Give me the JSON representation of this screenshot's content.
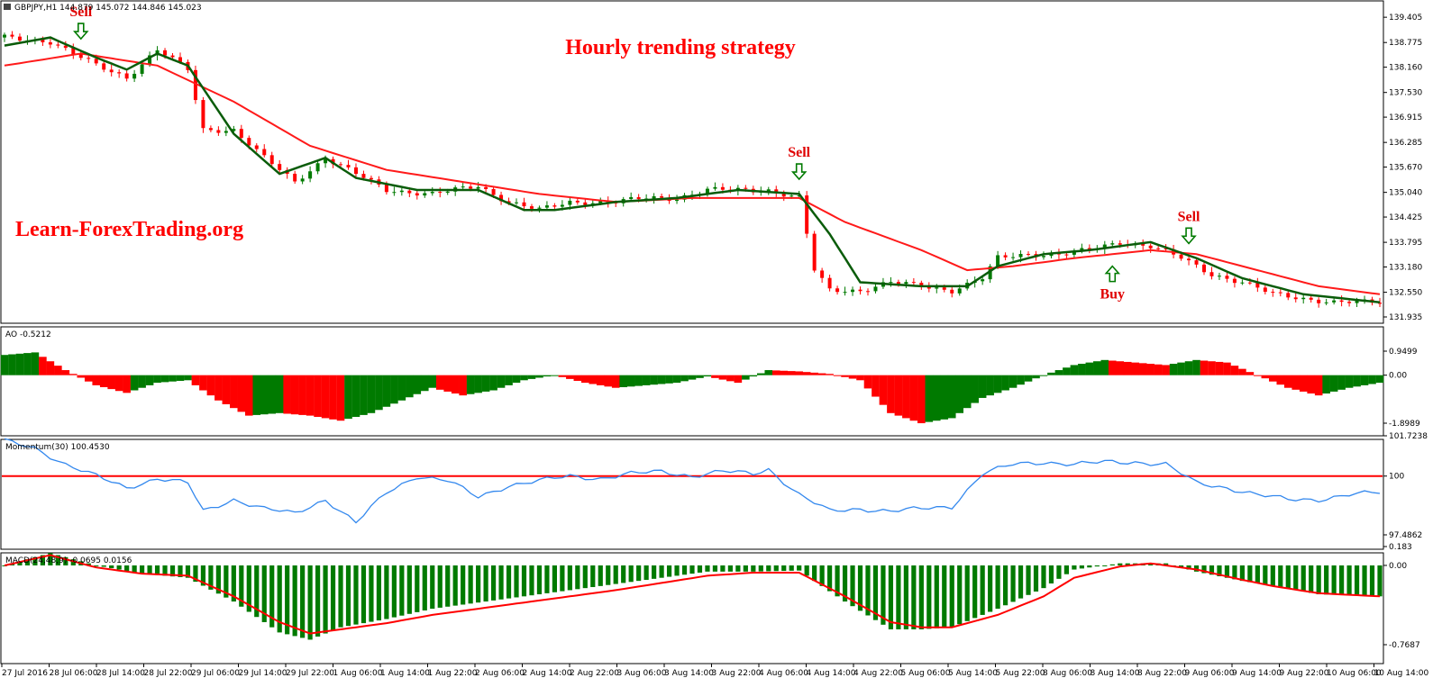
{
  "colors": {
    "bull": "#007a00",
    "bear": "#ff0000",
    "slow_ma": "#ff1a1a",
    "fast_ma": "#0a5c0a",
    "momentum_line": "#3388ee",
    "ref_line": "#ff0000",
    "macd_hist": "#007a00",
    "macd_signal": "#ff0000",
    "text_red": "#ff0000"
  },
  "header": {
    "symbol_info": "GBPJPY,H1  144.879 145.072 144.846 145.023",
    "title": "Hourly trending strategy",
    "watermark": "Learn-ForexTrading.org"
  },
  "signals": [
    {
      "label": "Sell",
      "direction": "down",
      "time_index": 10
    },
    {
      "label": "Sell",
      "direction": "down",
      "time_index": 104
    },
    {
      "label": "Buy",
      "direction": "up",
      "time_index": 145
    },
    {
      "label": "Sell",
      "direction": "down",
      "time_index": 155
    }
  ],
  "x_axis": {
    "labels": [
      "27 Jul 2016",
      "28 Jul 06:00",
      "28 Jul 14:00",
      "28 Jul 22:00",
      "29 Jul 06:00",
      "29 Jul 14:00",
      "29 Jul 22:00",
      "1 Aug 06:00",
      "1 Aug 14:00",
      "1 Aug 22:00",
      "2 Aug 06:00",
      "2 Aug 14:00",
      "2 Aug 22:00",
      "3 Aug 06:00",
      "3 Aug 14:00",
      "3 Aug 22:00",
      "4 Aug 06:00",
      "4 Aug 14:00",
      "4 Aug 22:00",
      "5 Aug 06:00",
      "5 Aug 14:00",
      "5 Aug 22:00",
      "8 Aug 06:00",
      "8 Aug 14:00",
      "8 Aug 22:00",
      "9 Aug 06:00",
      "9 Aug 14:00",
      "9 Aug 22:00",
      "10 Aug 06:00",
      "10 Aug 14:00"
    ]
  },
  "chart_data": [
    {
      "type": "candlestick",
      "name": "price",
      "ylim": [
        131.935,
        139.7
      ],
      "y_ticks": [
        "139.405",
        "138.775",
        "138.160",
        "137.530",
        "136.915",
        "136.285",
        "135.670",
        "135.040",
        "134.425",
        "133.795",
        "133.180",
        "132.550",
        "131.935"
      ],
      "close_points": [
        [
          0,
          138.9
        ],
        [
          6,
          138.8
        ],
        [
          12,
          138.2
        ],
        [
          16,
          137.9
        ],
        [
          20,
          138.6
        ],
        [
          24,
          138.1
        ],
        [
          26,
          136.6
        ],
        [
          30,
          136.6
        ],
        [
          34,
          135.9
        ],
        [
          38,
          135.3
        ],
        [
          42,
          135.9
        ],
        [
          46,
          135.5
        ],
        [
          50,
          135.1
        ],
        [
          56,
          135.0
        ],
        [
          62,
          135.2
        ],
        [
          66,
          134.8
        ],
        [
          70,
          134.6
        ],
        [
          74,
          134.8
        ],
        [
          80,
          134.8
        ],
        [
          84,
          134.9
        ],
        [
          88,
          134.9
        ],
        [
          92,
          135.1
        ],
        [
          96,
          135.1
        ],
        [
          100,
          135.1
        ],
        [
          104,
          134.9
        ],
        [
          106,
          133.1
        ],
        [
          108,
          132.6
        ],
        [
          112,
          132.6
        ],
        [
          116,
          132.8
        ],
        [
          120,
          132.7
        ],
        [
          124,
          132.6
        ],
        [
          128,
          132.9
        ],
        [
          130,
          133.4
        ],
        [
          134,
          133.5
        ],
        [
          138,
          133.5
        ],
        [
          142,
          133.6
        ],
        [
          146,
          133.8
        ],
        [
          150,
          133.7
        ],
        [
          154,
          133.4
        ],
        [
          158,
          133.0
        ],
        [
          162,
          132.8
        ],
        [
          166,
          132.5
        ],
        [
          170,
          132.4
        ],
        [
          174,
          132.3
        ],
        [
          178,
          132.3
        ],
        [
          180,
          132.3
        ]
      ],
      "slow_ma_points": [
        [
          0,
          138.2
        ],
        [
          10,
          138.5
        ],
        [
          20,
          138.2
        ],
        [
          30,
          137.3
        ],
        [
          40,
          136.2
        ],
        [
          50,
          135.6
        ],
        [
          60,
          135.3
        ],
        [
          70,
          135.0
        ],
        [
          80,
          134.8
        ],
        [
          90,
          134.9
        ],
        [
          100,
          134.9
        ],
        [
          104,
          134.9
        ],
        [
          110,
          134.3
        ],
        [
          120,
          133.6
        ],
        [
          126,
          133.1
        ],
        [
          132,
          133.2
        ],
        [
          140,
          133.4
        ],
        [
          150,
          133.6
        ],
        [
          156,
          133.5
        ],
        [
          164,
          133.1
        ],
        [
          172,
          132.7
        ],
        [
          180,
          132.5
        ]
      ],
      "fast_ma_points": [
        [
          0,
          138.7
        ],
        [
          6,
          138.9
        ],
        [
          12,
          138.4
        ],
        [
          16,
          138.1
        ],
        [
          20,
          138.5
        ],
        [
          24,
          138.2
        ],
        [
          30,
          136.5
        ],
        [
          36,
          135.5
        ],
        [
          42,
          135.9
        ],
        [
          46,
          135.4
        ],
        [
          54,
          135.1
        ],
        [
          62,
          135.1
        ],
        [
          68,
          134.6
        ],
        [
          72,
          134.6
        ],
        [
          80,
          134.8
        ],
        [
          88,
          134.9
        ],
        [
          96,
          135.1
        ],
        [
          104,
          135.0
        ],
        [
          108,
          134.0
        ],
        [
          112,
          132.8
        ],
        [
          120,
          132.7
        ],
        [
          126,
          132.7
        ],
        [
          130,
          133.2
        ],
        [
          136,
          133.5
        ],
        [
          142,
          133.6
        ],
        [
          150,
          133.8
        ],
        [
          156,
          133.4
        ],
        [
          162,
          132.9
        ],
        [
          170,
          132.5
        ],
        [
          180,
          132.3
        ]
      ]
    },
    {
      "type": "bar",
      "name": "AO",
      "label": "AO -0.5212",
      "ylim": [
        -1.8989,
        0.9499
      ],
      "y_ticks": [
        "0.9499",
        "0.00",
        "-1.8989"
      ],
      "points": [
        [
          0,
          0.8
        ],
        [
          4,
          0.9
        ],
        [
          8,
          0.2
        ],
        [
          12,
          -0.4
        ],
        [
          16,
          -0.7
        ],
        [
          20,
          -0.3
        ],
        [
          24,
          -0.2
        ],
        [
          28,
          -1.0
        ],
        [
          32,
          -1.6
        ],
        [
          36,
          -1.5
        ],
        [
          40,
          -1.6
        ],
        [
          44,
          -1.8
        ],
        [
          48,
          -1.5
        ],
        [
          52,
          -1.0
        ],
        [
          56,
          -0.5
        ],
        [
          60,
          -0.8
        ],
        [
          64,
          -0.6
        ],
        [
          68,
          -0.2
        ],
        [
          72,
          0.0
        ],
        [
          76,
          -0.3
        ],
        [
          80,
          -0.5
        ],
        [
          84,
          -0.4
        ],
        [
          88,
          -0.3
        ],
        [
          92,
          -0.05
        ],
        [
          96,
          -0.3
        ],
        [
          100,
          0.2
        ],
        [
          104,
          0.15
        ],
        [
          108,
          0.05
        ],
        [
          112,
          -0.2
        ],
        [
          116,
          -1.5
        ],
        [
          120,
          -1.9
        ],
        [
          124,
          -1.7
        ],
        [
          128,
          -0.9
        ],
        [
          132,
          -0.5
        ],
        [
          136,
          0.0
        ],
        [
          140,
          0.4
        ],
        [
          144,
          0.6
        ],
        [
          148,
          0.5
        ],
        [
          152,
          0.4
        ],
        [
          156,
          0.6
        ],
        [
          160,
          0.5
        ],
        [
          164,
          0.0
        ],
        [
          168,
          -0.5
        ],
        [
          172,
          -0.8
        ],
        [
          176,
          -0.5
        ],
        [
          180,
          -0.3
        ]
      ]
    },
    {
      "type": "line",
      "name": "Momentum",
      "label": "Momentum(30) 100.4530",
      "ylim": [
        97.4862,
        101.7238
      ],
      "y_ticks": [
        "101.7238",
        "100",
        "97.4862"
      ],
      "reference": 100,
      "points": [
        [
          0,
          101.5
        ],
        [
          4,
          101.2
        ],
        [
          8,
          100.5
        ],
        [
          12,
          100.0
        ],
        [
          16,
          99.5
        ],
        [
          20,
          99.9
        ],
        [
          24,
          99.7
        ],
        [
          26,
          98.5
        ],
        [
          30,
          99.0
        ],
        [
          34,
          98.6
        ],
        [
          38,
          98.4
        ],
        [
          42,
          99.0
        ],
        [
          46,
          98.0
        ],
        [
          50,
          99.3
        ],
        [
          54,
          100.0
        ],
        [
          58,
          99.8
        ],
        [
          62,
          99.1
        ],
        [
          66,
          99.6
        ],
        [
          70,
          99.8
        ],
        [
          74,
          100.0
        ],
        [
          78,
          99.9
        ],
        [
          82,
          100.1
        ],
        [
          86,
          100.2
        ],
        [
          90,
          100.0
        ],
        [
          94,
          100.2
        ],
        [
          98,
          100.1
        ],
        [
          100,
          100.3
        ],
        [
          104,
          99.2
        ],
        [
          108,
          98.5
        ],
        [
          112,
          98.6
        ],
        [
          116,
          98.5
        ],
        [
          120,
          98.6
        ],
        [
          124,
          98.7
        ],
        [
          128,
          100.1
        ],
        [
          132,
          100.5
        ],
        [
          136,
          100.6
        ],
        [
          140,
          100.5
        ],
        [
          144,
          100.6
        ],
        [
          148,
          100.6
        ],
        [
          152,
          100.5
        ],
        [
          156,
          99.7
        ],
        [
          160,
          99.5
        ],
        [
          164,
          99.2
        ],
        [
          168,
          99.0
        ],
        [
          172,
          99.0
        ],
        [
          176,
          99.2
        ],
        [
          180,
          99.3
        ]
      ]
    },
    {
      "type": "bar",
      "name": "MACD",
      "label": "MACD(24,48,9) -0.0695 0.0156",
      "ylim": [
        -0.7687,
        0.183
      ],
      "y_ticks": [
        "0.183",
        "0.00",
        "-0.7687"
      ],
      "histogram_points": [
        [
          0,
          0.0
        ],
        [
          6,
          0.12
        ],
        [
          12,
          0.0
        ],
        [
          18,
          -0.08
        ],
        [
          24,
          -0.12
        ],
        [
          30,
          -0.35
        ],
        [
          36,
          -0.65
        ],
        [
          40,
          -0.72
        ],
        [
          44,
          -0.6
        ],
        [
          50,
          -0.52
        ],
        [
          56,
          -0.42
        ],
        [
          62,
          -0.36
        ],
        [
          68,
          -0.3
        ],
        [
          74,
          -0.24
        ],
        [
          80,
          -0.18
        ],
        [
          86,
          -0.12
        ],
        [
          92,
          -0.06
        ],
        [
          98,
          -0.06
        ],
        [
          104,
          -0.05
        ],
        [
          110,
          -0.35
        ],
        [
          116,
          -0.62
        ],
        [
          120,
          -0.62
        ],
        [
          124,
          -0.6
        ],
        [
          130,
          -0.42
        ],
        [
          136,
          -0.22
        ],
        [
          140,
          -0.04
        ],
        [
          146,
          0.02
        ],
        [
          152,
          0.02
        ],
        [
          156,
          -0.06
        ],
        [
          162,
          -0.15
        ],
        [
          166,
          -0.2
        ],
        [
          172,
          -0.28
        ],
        [
          180,
          -0.3
        ]
      ],
      "signal_points": [
        [
          0,
          0.0
        ],
        [
          6,
          0.1
        ],
        [
          12,
          -0.02
        ],
        [
          18,
          -0.08
        ],
        [
          24,
          -0.1
        ],
        [
          30,
          -0.3
        ],
        [
          36,
          -0.55
        ],
        [
          40,
          -0.66
        ],
        [
          44,
          -0.62
        ],
        [
          50,
          -0.56
        ],
        [
          56,
          -0.48
        ],
        [
          62,
          -0.42
        ],
        [
          68,
          -0.36
        ],
        [
          74,
          -0.3
        ],
        [
          80,
          -0.24
        ],
        [
          86,
          -0.17
        ],
        [
          92,
          -0.1
        ],
        [
          98,
          -0.07
        ],
        [
          104,
          -0.07
        ],
        [
          110,
          -0.3
        ],
        [
          116,
          -0.55
        ],
        [
          120,
          -0.6
        ],
        [
          124,
          -0.6
        ],
        [
          130,
          -0.48
        ],
        [
          136,
          -0.3
        ],
        [
          140,
          -0.12
        ],
        [
          146,
          -0.01
        ],
        [
          150,
          0.02
        ],
        [
          156,
          -0.04
        ],
        [
          162,
          -0.14
        ],
        [
          166,
          -0.2
        ],
        [
          172,
          -0.27
        ],
        [
          180,
          -0.3
        ]
      ]
    }
  ]
}
